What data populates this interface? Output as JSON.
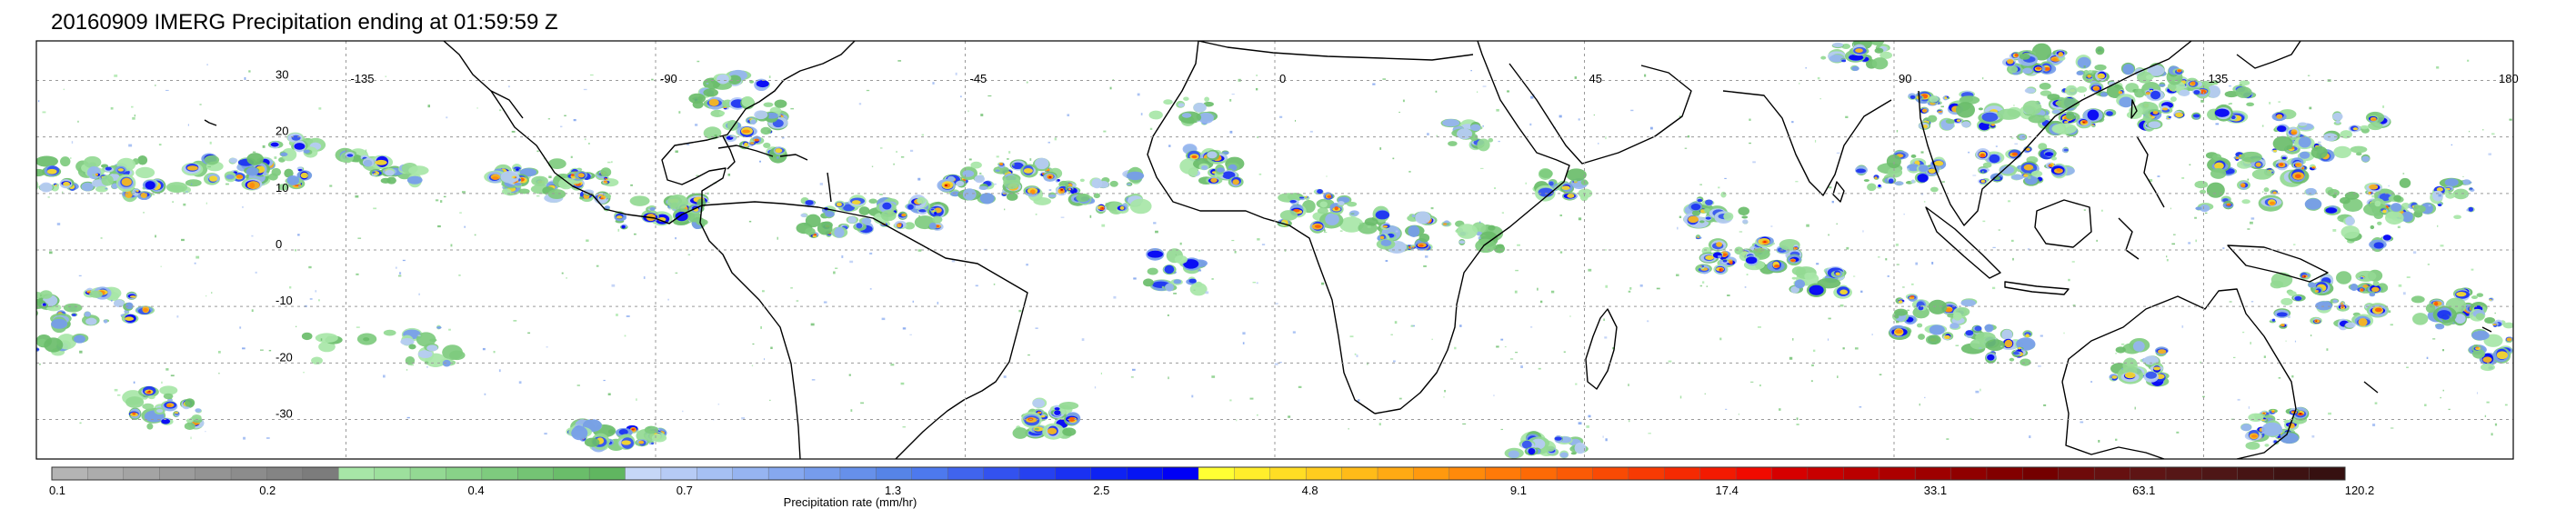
{
  "title": "20160909 IMERG Precipitation ending at 01:59:59 Z",
  "map": {
    "projection": "equirectangular",
    "lon_range": [
      -180,
      180
    ],
    "lat_range": [
      -37,
      37
    ],
    "lon_ticks": [
      "-135",
      "-90",
      "-45",
      "0",
      "45",
      "90",
      "135",
      "180"
    ],
    "lon_tick_values": [
      -135,
      -90,
      -45,
      0,
      45,
      90,
      135,
      180
    ],
    "lat_ticks": [
      "30",
      "20",
      "10",
      "0",
      "-10",
      "-20",
      "-30"
    ],
    "lat_tick_values": [
      30,
      20,
      10,
      0,
      -10,
      -20,
      -30
    ],
    "gridlines": true,
    "coastline_color": "#000000",
    "grid_color": "#9a9a9a"
  },
  "colorbar": {
    "title": "Precipitation rate (mm/hr)",
    "labels": [
      "0.1",
      "0.2",
      "0.4",
      "0.7",
      "1.3",
      "2.5",
      "4.8",
      "9.1",
      "17.4",
      "33.1",
      "63.1",
      "120.2"
    ],
    "groups": [
      {
        "n": 8,
        "colors": [
          "#b4b4b4",
          "#acacac",
          "#a4a4a4",
          "#9c9c9c",
          "#949494",
          "#8c8c8c",
          "#848484",
          "#7c7c7c"
        ]
      },
      {
        "n": 8,
        "colors": [
          "#a7e6a7",
          "#9de09d",
          "#93d993",
          "#88d288",
          "#7ecb7e",
          "#74c474",
          "#6abd6a",
          "#60b660"
        ]
      },
      {
        "n": 8,
        "colors": [
          "#c6d7f7",
          "#b6cbf5",
          "#a6c0f3",
          "#96b4f1",
          "#86a8ef",
          "#769cec",
          "#6690ea",
          "#5684e7"
        ]
      },
      {
        "n": 8,
        "colors": [
          "#4d79ee",
          "#4064ee",
          "#3352ef",
          "#2641f0",
          "#1a31f2",
          "#0e22f3",
          "#0615f4",
          "#0000f5"
        ]
      },
      {
        "n": 8,
        "colors": [
          "#ffff33",
          "#ffee2b",
          "#ffdd24",
          "#ffcc1e",
          "#ffbb18",
          "#ffaa13",
          "#ff990e",
          "#ff8a0a"
        ]
      },
      {
        "n": 8,
        "colors": [
          "#ff7a08",
          "#fd6a06",
          "#fb5a05",
          "#f94a04",
          "#f73a03",
          "#f52a02",
          "#f31a01",
          "#f00a00"
        ]
      },
      {
        "n": 8,
        "colors": [
          "#d60000",
          "#c80000",
          "#ba0000",
          "#ac0000",
          "#9e0000",
          "#900000",
          "#820000",
          "#740000"
        ]
      },
      {
        "n": 8,
        "colors": [
          "#6e0a0a",
          "#661010",
          "#5e1414",
          "#561616",
          "#4e1616",
          "#461414",
          "#3e1212",
          "#361010"
        ]
      }
    ]
  }
}
